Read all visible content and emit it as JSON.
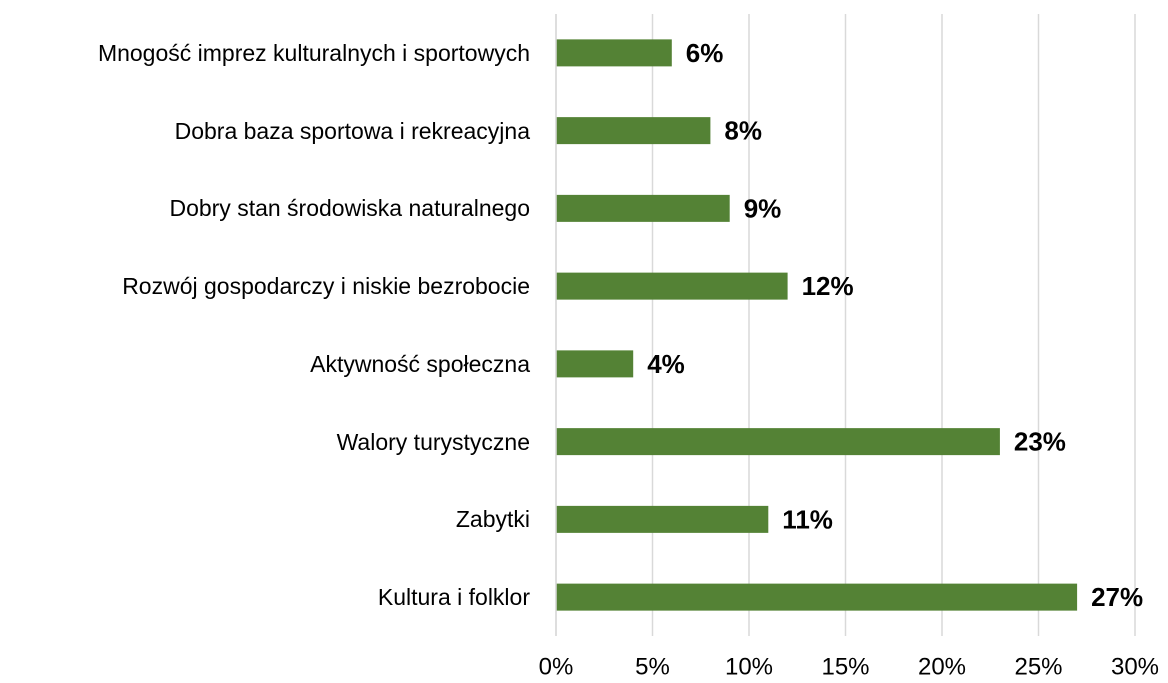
{
  "chart_data": {
    "type": "bar",
    "orientation": "horizontal",
    "categories": [
      "Mnogość imprez kulturalnych i sportowych",
      "Dobra baza sportowa i rekreacyjna",
      "Dobry stan środowiska naturalnego",
      "Rozwój gospodarczy i niskie bezrobocie",
      "Aktywność społeczna",
      "Walory turystyczne",
      "Zabytki",
      "Kultura i folklor"
    ],
    "values": [
      6,
      8,
      9,
      12,
      4,
      23,
      11,
      27
    ],
    "value_labels": [
      "6%",
      "8%",
      "9%",
      "12%",
      "4%",
      "23%",
      "11%",
      "27%"
    ],
    "color": "#548235",
    "xlim": [
      0,
      30
    ],
    "xticks": [
      {
        "value": 0,
        "label": "0%"
      },
      {
        "value": 5,
        "label": "5%"
      },
      {
        "value": 10,
        "label": "10%"
      },
      {
        "value": 15,
        "label": "15%"
      },
      {
        "value": 20,
        "label": "20%"
      },
      {
        "value": 25,
        "label": "25%"
      },
      {
        "value": 30,
        "label": "30%"
      }
    ],
    "grid": true
  }
}
